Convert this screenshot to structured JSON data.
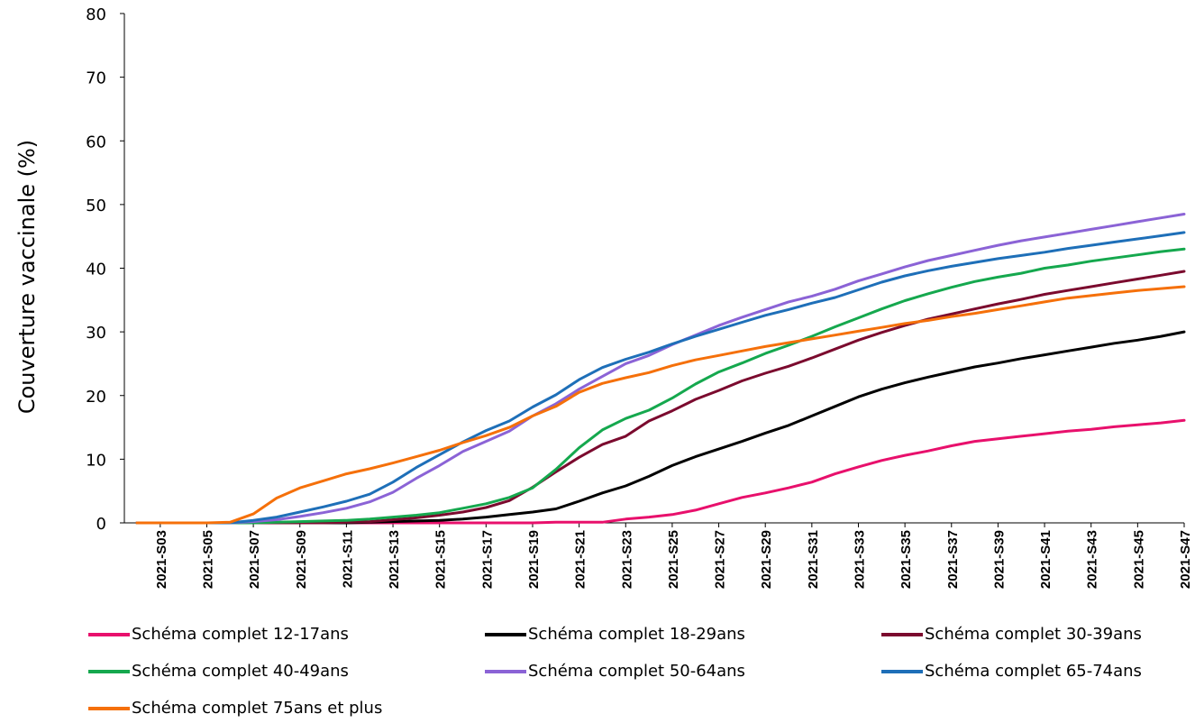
{
  "chart_data": {
    "type": "line",
    "ylabel": "Couverture vaccinale (%)",
    "xlabel": "",
    "ylim": [
      0,
      80
    ],
    "yticks": [
      0,
      10,
      20,
      30,
      40,
      50,
      60,
      70,
      80
    ],
    "grid": false,
    "legend_position": "bottom",
    "categories": [
      "2021-S02",
      "2021-S03",
      "2021-S04",
      "2021-S05",
      "2021-S06",
      "2021-S07",
      "2021-S08",
      "2021-S09",
      "2021-S10",
      "2021-S11",
      "2021-S12",
      "2021-S13",
      "2021-S14",
      "2021-S15",
      "2021-S16",
      "2021-S17",
      "2021-S18",
      "2021-S19",
      "2021-S20",
      "2021-S21",
      "2021-S22",
      "2021-S23",
      "2021-S24",
      "2021-S25",
      "2021-S26",
      "2021-S27",
      "2021-S28",
      "2021-S29",
      "2021-S30",
      "2021-S31",
      "2021-S32",
      "2021-S33",
      "2021-S34",
      "2021-S35",
      "2021-S36",
      "2021-S37",
      "2021-S38",
      "2021-S39",
      "2021-S40",
      "2021-S41",
      "2021-S42",
      "2021-S43",
      "2021-S44",
      "2021-S45",
      "2021-S46",
      "2021-S47"
    ],
    "tick_labels": [
      "2021-S03",
      "2021-S05",
      "2021-S07",
      "2021-S09",
      "2021-S11",
      "2021-S13",
      "2021-S15",
      "2021-S17",
      "2021-S19",
      "2021-S21",
      "2021-S23",
      "2021-S25",
      "2021-S27",
      "2021-S29",
      "2021-S31",
      "2021-S33",
      "2021-S35",
      "2021-S37",
      "2021-S39",
      "2021-S41",
      "2021-S43",
      "2021-S45",
      "2021-S47"
    ],
    "series": [
      {
        "name": "Schéma complet 12-17ans",
        "color": "#E8106C",
        "values": [
          0,
          0,
          0,
          0,
          0,
          0,
          0,
          0,
          0,
          0,
          0,
          0,
          0,
          0,
          0,
          0,
          0,
          0,
          0.1,
          0.1,
          0.1,
          0.6,
          0.9,
          1.3,
          2.0,
          3.0,
          4.0,
          4.7,
          5.5,
          6.4,
          7.7,
          8.8,
          9.8,
          10.6,
          11.3,
          12.1,
          12.8,
          13.2,
          13.6,
          14.0,
          14.4,
          14.7,
          15.1,
          15.4,
          15.7,
          16.1
        ]
      },
      {
        "name": "Schéma complet 18-29ans",
        "color": "#000000",
        "values": [
          0,
          0,
          0,
          0,
          0,
          0,
          0,
          0,
          0,
          0,
          0.1,
          0.2,
          0.3,
          0.4,
          0.6,
          0.9,
          1.3,
          1.7,
          2.2,
          3.4,
          4.7,
          5.8,
          7.3,
          9.0,
          10.4,
          11.6,
          12.8,
          14.1,
          15.3,
          16.8,
          18.3,
          19.8,
          21.0,
          22.0,
          22.9,
          23.7,
          24.5,
          25.1,
          25.8,
          26.4,
          27.0,
          27.6,
          28.2,
          28.7,
          29.3,
          30.0
        ]
      },
      {
        "name": "Schéma complet 30-39ans",
        "color": "#7B0A2E",
        "values": [
          0,
          0,
          0,
          0,
          0,
          0,
          0,
          0,
          0,
          0.1,
          0.2,
          0.5,
          0.8,
          1.2,
          1.7,
          2.4,
          3.5,
          5.6,
          8.0,
          10.3,
          12.3,
          13.6,
          16.0,
          17.6,
          19.4,
          20.8,
          22.3,
          23.5,
          24.6,
          25.9,
          27.3,
          28.7,
          29.9,
          31.0,
          32.0,
          32.8,
          33.6,
          34.4,
          35.1,
          35.9,
          36.5,
          37.1,
          37.7,
          38.3,
          38.9,
          39.5
        ]
      },
      {
        "name": "Schéma complet 40-49ans",
        "color": "#15A84E",
        "values": [
          0,
          0,
          0,
          0,
          0,
          0,
          0.1,
          0.2,
          0.3,
          0.4,
          0.6,
          0.9,
          1.2,
          1.6,
          2.3,
          3.0,
          4.0,
          5.5,
          8.4,
          11.8,
          14.6,
          16.4,
          17.7,
          19.6,
          21.8,
          23.7,
          25.1,
          26.6,
          27.9,
          29.3,
          30.8,
          32.2,
          33.6,
          34.9,
          36.0,
          37.0,
          37.9,
          38.6,
          39.2,
          40.0,
          40.5,
          41.1,
          41.6,
          42.1,
          42.6,
          43.0
        ]
      },
      {
        "name": "Schéma complet 50-64ans",
        "color": "#8B63D6",
        "values": [
          0,
          0,
          0,
          0,
          0,
          0.2,
          0.5,
          1.0,
          1.6,
          2.3,
          3.3,
          4.8,
          7.0,
          9.0,
          11.2,
          12.8,
          14.4,
          16.8,
          18.7,
          21.0,
          23.0,
          25.0,
          26.3,
          28.0,
          29.5,
          31.0,
          32.3,
          33.5,
          34.7,
          35.6,
          36.7,
          38.0,
          39.1,
          40.2,
          41.2,
          42.0,
          42.8,
          43.6,
          44.3,
          44.9,
          45.5,
          46.1,
          46.7,
          47.3,
          47.9,
          48.5
        ]
      },
      {
        "name": "Schéma complet 65-74ans",
        "color": "#1E6FB8",
        "values": [
          0,
          0,
          0,
          0,
          0,
          0.4,
          0.9,
          1.7,
          2.5,
          3.4,
          4.5,
          6.4,
          8.7,
          10.7,
          12.7,
          14.5,
          16.0,
          18.2,
          20.1,
          22.5,
          24.4,
          25.7,
          26.8,
          28.1,
          29.3,
          30.4,
          31.5,
          32.6,
          33.5,
          34.5,
          35.4,
          36.6,
          37.8,
          38.8,
          39.6,
          40.3,
          40.9,
          41.5,
          42.0,
          42.5,
          43.1,
          43.6,
          44.1,
          44.6,
          45.1,
          45.6
        ]
      },
      {
        "name": "Schéma complet 75ans et plus",
        "color": "#F5700A",
        "values": [
          0,
          0,
          0,
          0,
          0.1,
          1.4,
          3.9,
          5.5,
          6.6,
          7.7,
          8.5,
          9.4,
          10.4,
          11.4,
          12.6,
          13.7,
          15.0,
          16.8,
          18.3,
          20.5,
          21.9,
          22.8,
          23.6,
          24.7,
          25.6,
          26.3,
          27.0,
          27.7,
          28.3,
          28.9,
          29.5,
          30.1,
          30.7,
          31.3,
          31.8,
          32.4,
          32.9,
          33.5,
          34.1,
          34.7,
          35.3,
          35.7,
          36.1,
          36.5,
          36.8,
          37.1
        ]
      }
    ]
  }
}
